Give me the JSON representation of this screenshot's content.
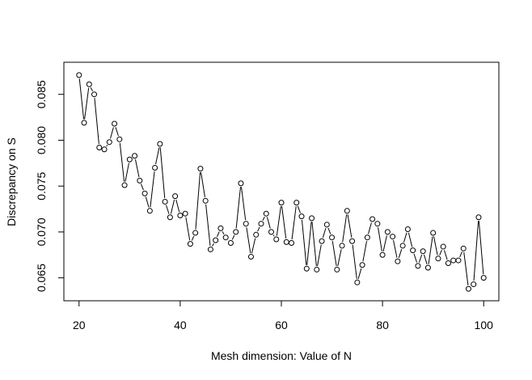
{
  "chart_data": {
    "type": "line",
    "xlabel": "Mesh dimension: Value of N",
    "ylabel": "Discrepancy on S",
    "xlim": [
      17,
      103
    ],
    "ylim": [
      0.0625,
      0.0885
    ],
    "xticks": [
      "20",
      "40",
      "60",
      "80",
      "100"
    ],
    "yticks": [
      "0.065",
      "0.070",
      "0.075",
      "0.080",
      "0.085"
    ],
    "grid": false,
    "series": [
      {
        "x": [
          20,
          21,
          22,
          23,
          24,
          25,
          26,
          27,
          28,
          29,
          30,
          31,
          32,
          33,
          34,
          35,
          36,
          37,
          38,
          39,
          40,
          41,
          42,
          43,
          44,
          45,
          46,
          47,
          48,
          49,
          50,
          51,
          52,
          53,
          54,
          55,
          56,
          57,
          58,
          59,
          60,
          61,
          62,
          63,
          64,
          65,
          66,
          67,
          68,
          69,
          70,
          71,
          72,
          73,
          74,
          75,
          76,
          77,
          78,
          79,
          80,
          81,
          82,
          83,
          84,
          85,
          86,
          87,
          88,
          89,
          90,
          91,
          92,
          93,
          94,
          95,
          96,
          97,
          98,
          99,
          100
        ],
        "y": [
          0.0871,
          0.0819,
          0.0861,
          0.085,
          0.0792,
          0.079,
          0.0798,
          0.0818,
          0.0801,
          0.0751,
          0.0779,
          0.0783,
          0.0756,
          0.0742,
          0.0723,
          0.077,
          0.0796,
          0.0733,
          0.0716,
          0.0739,
          0.0718,
          0.072,
          0.0687,
          0.0699,
          0.0769,
          0.0734,
          0.0681,
          0.0691,
          0.0704,
          0.0694,
          0.0688,
          0.07,
          0.0753,
          0.0709,
          0.0673,
          0.0697,
          0.0709,
          0.072,
          0.07,
          0.0692,
          0.0732,
          0.0689,
          0.0688,
          0.0732,
          0.0717,
          0.066,
          0.0715,
          0.0659,
          0.069,
          0.0708,
          0.0694,
          0.0659,
          0.0685,
          0.0723,
          0.069,
          0.0645,
          0.0664,
          0.0694,
          0.0714,
          0.0709,
          0.0675,
          0.07,
          0.0695,
          0.0668,
          0.0685,
          0.0703,
          0.068,
          0.0663,
          0.0679,
          0.0661,
          0.0699,
          0.0671,
          0.0684,
          0.0666,
          0.0669,
          0.0669,
          0.0682,
          0.0638,
          0.0643,
          0.0716,
          0.065
        ]
      }
    ]
  }
}
